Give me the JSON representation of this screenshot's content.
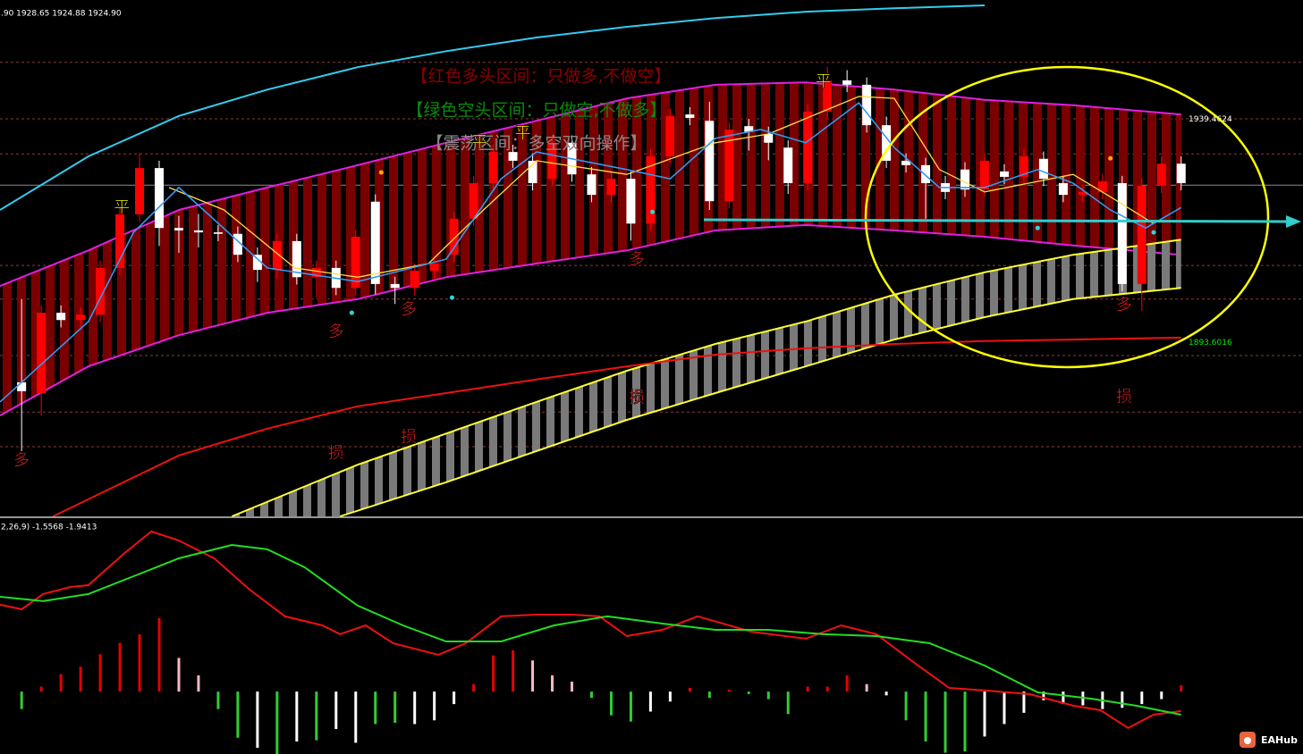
{
  "header": ".90 1928.65 1924.88 1924.90",
  "logo": "EAHub",
  "chart_data": [
    {
      "type": "candlestick",
      "xlim": [
        -1.1,
        65.2
      ],
      "ylim": [
        1857.9,
        1963.9
      ],
      "up_color": "#ff0000",
      "down_color": "#ffffff",
      "open": [
        1885.4,
        1883.2,
        1899.7,
        1898.2,
        1899.3,
        1908.9,
        1919.9,
        1929.4,
        1917.1,
        1916.6,
        1916.2,
        1915.9,
        1911.6,
        1908.5,
        1914.4,
        1907.0,
        1908.9,
        1904.8,
        1922.5,
        1905.6,
        1904.8,
        1908.3,
        1911.6,
        1919.0,
        1926.3,
        1932.7,
        1930.9,
        1927.2,
        1934.6,
        1928.1,
        1923.9,
        1927.2,
        1918.0,
        1931.8,
        1940.4,
        1939.1,
        1922.6,
        1938.0,
        1936.4,
        1933.6,
        1926.3,
        1941.0,
        1947.4,
        1946.5,
        1938.2,
        1930.9,
        1930.0,
        1926.3,
        1929.1,
        1925.0,
        1928.7,
        1927.6,
        1931.3,
        1926.3,
        1923.9,
        1924.5,
        1926.3,
        1905.6,
        1925.8,
        1930.3
      ],
      "high": [
        1902.5,
        1901.2,
        1901.2,
        1900.8,
        1910.4,
        1921.4,
        1932.4,
        1930.9,
        1919.6,
        1920.0,
        1917.7,
        1917.4,
        1913.1,
        1916.0,
        1915.9,
        1910.4,
        1910.4,
        1916.8,
        1924.0,
        1907.1,
        1909.8,
        1911.3,
        1920.5,
        1927.8,
        1934.2,
        1934.2,
        1932.4,
        1936.1,
        1936.1,
        1929.6,
        1928.7,
        1928.7,
        1933.3,
        1941.6,
        1941.9,
        1943.0,
        1938.8,
        1939.5,
        1937.9,
        1935.1,
        1942.5,
        1950.2,
        1949.5,
        1948.0,
        1940.0,
        1932.4,
        1931.5,
        1927.8,
        1930.6,
        1932.4,
        1930.2,
        1933.3,
        1932.8,
        1927.8,
        1926.0,
        1928.2,
        1927.8,
        1927.3,
        1931.8,
        1931.8
      ],
      "low": [
        1871.3,
        1878.6,
        1896.7,
        1896.7,
        1897.8,
        1907.4,
        1918.4,
        1913.4,
        1912.0,
        1913.1,
        1914.4,
        1910.1,
        1906.0,
        1906.6,
        1905.5,
        1902.8,
        1903.3,
        1903.3,
        1903.5,
        1901.5,
        1903.3,
        1906.8,
        1910.1,
        1917.5,
        1924.8,
        1929.4,
        1924.8,
        1925.7,
        1926.6,
        1922.4,
        1922.4,
        1914.5,
        1916.5,
        1930.3,
        1938.2,
        1920.8,
        1921.1,
        1933.0,
        1931.0,
        1924.1,
        1924.8,
        1939.5,
        1945.0,
        1936.7,
        1929.4,
        1928.5,
        1919.0,
        1923.0,
        1923.5,
        1923.5,
        1926.1,
        1926.1,
        1925.7,
        1922.4,
        1922.4,
        1923.0,
        1904.1,
        1900.0,
        1924.3,
        1924.8
      ],
      "close": [
        1883.6,
        1899.7,
        1898.2,
        1899.3,
        1908.9,
        1919.9,
        1929.4,
        1917.1,
        1916.6,
        1916.2,
        1915.9,
        1911.6,
        1908.5,
        1914.4,
        1907.0,
        1908.9,
        1904.8,
        1915.3,
        1905.6,
        1904.8,
        1908.3,
        1909.8,
        1919.0,
        1926.3,
        1932.7,
        1930.9,
        1926.3,
        1934.6,
        1928.1,
        1923.9,
        1927.2,
        1918.0,
        1931.8,
        1940.1,
        1939.7,
        1922.6,
        1937.3,
        1936.8,
        1934.6,
        1926.3,
        1941.0,
        1947.4,
        1946.5,
        1938.2,
        1930.9,
        1930.0,
        1926.3,
        1924.5,
        1925.0,
        1930.9,
        1927.6,
        1931.8,
        1927.2,
        1923.9,
        1924.5,
        1926.7,
        1905.6,
        1925.8,
        1930.3,
        1926.3
      ],
      "levels": [
        1951.1,
        1939.5,
        1932.3,
        1909.4,
        1902.5,
        1890.9,
        1879.3,
        1872.2
      ],
      "level_color": "#8f3a30",
      "last_price": 1925.9,
      "last_price_color": "#8a8a9a",
      "bands": [
        {
          "line_color": "#e020e0",
          "fill": "stripe-red",
          "upper": {
            "x": [
              -1.1,
              3.4,
              8.0,
              12.5,
              17.1,
              21.6,
              26.2,
              30.8,
              35.3,
              39.9,
              44.4,
              49.0,
              53.5,
              59.0
            ],
            "values": [
              1905.2,
              1912.5,
              1920.8,
              1925.4,
              1930.0,
              1934.6,
              1939.1,
              1943.7,
              1946.5,
              1947.0,
              1945.5,
              1943.4,
              1942.3,
              1940.4
            ]
          },
          "lower": {
            "x": [
              -1.1,
              3.4,
              8.0,
              12.5,
              17.1,
              21.6,
              26.2,
              30.8,
              35.3,
              39.9,
              44.4,
              49.0,
              53.5,
              59.0
            ],
            "values": [
              1878.6,
              1888.7,
              1895.1,
              1899.7,
              1902.5,
              1907.0,
              1909.8,
              1912.5,
              1916.6,
              1917.7,
              1916.6,
              1915.3,
              1913.5,
              1911.6
            ]
          }
        },
        {
          "line_color": "#ffff33",
          "fill": "stripe-gray",
          "upper": {
            "x": [
              10.7,
              17.1,
              21.6,
              26.2,
              30.8,
              35.3,
              39.9,
              44.4,
              49.0,
              53.5,
              59.0
            ],
            "values": [
              1857.9,
              1868.5,
              1874.9,
              1881.4,
              1887.8,
              1893.3,
              1897.9,
              1903.4,
              1908.0,
              1911.6,
              1914.7
            ]
          },
          "lower": {
            "x": [
              16.2,
              21.6,
              26.2,
              30.8,
              35.3,
              39.9,
              44.4,
              49.0,
              53.5,
              59.0
            ],
            "values": [
              1857.9,
              1864.9,
              1871.3,
              1877.7,
              1883.2,
              1888.7,
              1894.2,
              1898.8,
              1902.5,
              1904.8
            ]
          }
        }
      ],
      "lines": [
        {
          "color": "#33ccee",
          "width": 2,
          "x": [
            -1.1,
            3.4,
            8.0,
            12.5,
            17.1,
            21.6,
            26.2,
            30.8,
            35.3,
            39.9,
            44.4,
            49.0
          ],
          "values": [
            1920.8,
            1931.8,
            1940.1,
            1945.5,
            1950.1,
            1953.4,
            1956.2,
            1958.4,
            1960.2,
            1961.5,
            1962.2,
            1962.8
          ]
        },
        {
          "color": "#ee1111",
          "width": 2,
          "x": [
            1.6,
            8.0,
            12.5,
            17.1,
            21.6,
            26.2,
            30.8,
            35.3,
            39.9,
            44.4,
            49.0,
            53.5,
            59.0
          ],
          "values": [
            1857.9,
            1870.4,
            1875.9,
            1880.5,
            1883.2,
            1886.0,
            1888.7,
            1891.1,
            1892.4,
            1893.3,
            1893.9,
            1894.2,
            1894.6
          ]
        },
        {
          "color": "#ffdd44",
          "width": 1.3,
          "x": [
            7.5,
            10.3,
            13.9,
            17.1,
            20.7,
            23.5,
            26.2,
            30.8,
            35.3,
            38.0,
            42.6,
            44.4,
            46.7,
            49.0,
            53.5,
            55.4,
            57.6
          ],
          "values": [
            1925.4,
            1920.8,
            1908.9,
            1907.0,
            1909.8,
            1920.8,
            1930.9,
            1928.1,
            1934.6,
            1936.4,
            1944.1,
            1943.7,
            1929.1,
            1924.5,
            1928.1,
            1923.5,
            1918.0
          ]
        },
        {
          "color": "#3399ee",
          "width": 1.6,
          "x": [
            -1.1,
            3.4,
            5.7,
            8.0,
            12.5,
            17.1,
            21.6,
            24.4,
            26.2,
            30.8,
            33.0,
            35.3,
            37.6,
            39.9,
            42.6,
            44.4,
            46.7,
            49.0,
            51.7,
            53.5,
            55.4,
            57.2,
            59.0
          ],
          "values": [
            1881.4,
            1897.9,
            1916.2,
            1925.4,
            1908.9,
            1906.1,
            1910.7,
            1927.2,
            1932.7,
            1929.1,
            1927.2,
            1935.5,
            1937.3,
            1934.6,
            1942.8,
            1933.6,
            1925.4,
            1925.4,
            1929.1,
            1926.3,
            1920.8,
            1917.1,
            1921.3
          ]
        }
      ],
      "markers": [
        {
          "color": "#ffaa00",
          "x": [
            18.3,
            55.4
          ],
          "values": [
            1928.5,
            1931.4
          ]
        },
        {
          "color": "#22dddd",
          "x": [
            16.8,
            21.9,
            32.1,
            51.7,
            57.6
          ],
          "values": [
            1899.7,
            1902.8,
            1920.4,
            1917.1,
            1916.2
          ]
        }
      ],
      "annotations": [
        {
          "text": "多",
          "color": "#ff2020",
          "x": 0,
          "y": 1869.3
        },
        {
          "text": "平",
          "color": "#ffff00",
          "x": 5.1,
          "y": 1921.2
        },
        {
          "text": "多",
          "color": "#ff2020",
          "x": 16.0,
          "y": 1895.7
        },
        {
          "text": "损",
          "color": "#ff2020",
          "x": 16.0,
          "y": 1870.7
        },
        {
          "text": "多",
          "color": "#ff2020",
          "x": 19.7,
          "y": 1900.3
        },
        {
          "text": "损",
          "color": "#ff2020",
          "x": 19.7,
          "y": 1874.0
        },
        {
          "text": "平",
          "color": "#ffff00",
          "x": 23.3,
          "y": 1934.6
        },
        {
          "text": "平",
          "color": "#ffff00",
          "x": 25.5,
          "y": 1936.4
        },
        {
          "text": "多",
          "color": "#ff2020",
          "x": 31.3,
          "y": 1910.5
        },
        {
          "text": "损",
          "color": "#ff2020",
          "x": 31.3,
          "y": 1882.1
        },
        {
          "text": "平",
          "color": "#ffff00",
          "x": 40.8,
          "y": 1947.0
        },
        {
          "text": "多",
          "color": "#ff2020",
          "x": 56.1,
          "y": 1901.2
        },
        {
          "text": "损",
          "color": "#ff2020",
          "x": 56.1,
          "y": 1882.3
        }
      ],
      "price_labels": [
        {
          "value": 1939.4624,
          "color": "#ffffff"
        },
        {
          "value": 1893.6016,
          "color": "#00ee00"
        }
      ],
      "notes": [
        {
          "text": "【红色多头区间：只做多,不做空】",
          "color": "#8b0000"
        },
        {
          "text": "【绿色空头区间：只做空,不做多】",
          "color": "#0a8a0a"
        },
        {
          "text": "【震荡区间：多空双向操作】",
          "color": "#8a8a8a"
        }
      ]
    },
    {
      "type": "macd",
      "title": "2,26,9) -1.5568 -1.9413",
      "xlim": [
        -1.1,
        65.2
      ],
      "ylim": [
        -5,
        13.9
      ],
      "histogram": {
        "values": [
          -1.4,
          0.4,
          1.4,
          2.0,
          3.0,
          3.9,
          4.6,
          5.9,
          2.7,
          1.3,
          -1.4,
          -3.7,
          -4.5,
          -5.0,
          -4.0,
          -3.9,
          -3.0,
          -4.1,
          -2.6,
          -2.5,
          -2.6,
          -2.3,
          -1.0,
          0.6,
          2.9,
          3.3,
          2.5,
          1.3,
          0.8,
          -0.5,
          -1.9,
          -2.4,
          -1.6,
          -0.8,
          0.3,
          -0.5,
          0.15,
          -0.2,
          -0.6,
          -1.8,
          0.4,
          0.4,
          1.3,
          0.6,
          -0.3,
          -2.3,
          -4.0,
          -4.9,
          -4.8,
          -3.6,
          -2.6,
          -1.7,
          -0.7,
          -1.0,
          -1.1,
          -1.4,
          -1.3,
          -1.0,
          -0.6,
          0.5
        ],
        "colors": [
          "#32cd32",
          "#e60000",
          "#e60000",
          "#e60000",
          "#e60000",
          "#e60000",
          "#e60000",
          "#e60000",
          "#ffb6c1",
          "#ffb6c1",
          "#32cd32",
          "#32cd32",
          "#ffffff",
          "#32cd32",
          "#ffffff",
          "#32cd32",
          "#ffffff",
          "#ffffff",
          "#32cd32",
          "#32cd32",
          "#ffffff",
          "#ffffff",
          "#ffffff",
          "#e60000",
          "#e60000",
          "#e60000",
          "#ffb6c1",
          "#ffb6c1",
          "#ffb6c1",
          "#32cd32",
          "#32cd32",
          "#32cd32",
          "#ffffff",
          "#ffffff",
          "#e60000",
          "#32cd32",
          "#e60000",
          "#32cd32",
          "#32cd32",
          "#32cd32",
          "#e60000",
          "#e60000",
          "#e60000",
          "#ffb6c1",
          "#ffffff",
          "#32cd32",
          "#32cd32",
          "#32cd32",
          "#32cd32",
          "#ffffff",
          "#ffffff",
          "#ffffff",
          "#ffffff",
          "#ffffff",
          "#ffffff",
          "#ffffff",
          "#ffffff",
          "#ffffff",
          "#ffffff",
          "#e60000"
        ]
      },
      "lines": [
        {
          "color": "#ee1111",
          "width": 2,
          "x": [
            -1.1,
            0,
            1.1,
            2.5,
            3.4,
            5.2,
            6.6,
            8.0,
            9.8,
            11.6,
            13.4,
            15.3,
            16.2,
            17.5,
            18.9,
            21.2,
            22.6,
            24.4,
            26.2,
            28.0,
            29.4,
            30.8,
            32.6,
            34.4,
            37.1,
            39.9,
            41.7,
            43.5,
            45.3,
            47.2,
            49.0,
            51.3,
            53.5,
            54.9,
            56.3,
            57.6,
            59.0
          ],
          "values": [
            6.96,
            6.6,
            7.82,
            8.39,
            8.53,
            11.04,
            12.83,
            12.11,
            10.68,
            8.17,
            6.03,
            5.31,
            4.6,
            5.31,
            3.88,
            2.95,
            3.88,
            6.03,
            6.17,
            6.17,
            6.03,
            4.45,
            4.95,
            6.03,
            4.81,
            4.24,
            5.31,
            4.6,
            2.45,
            0.3,
            0.09,
            -0.2,
            -1.13,
            -1.49,
            -2.92,
            -1.85,
            -1.56
          ]
        },
        {
          "color": "#22dd22",
          "width": 2,
          "x": [
            -1.1,
            1.1,
            3.4,
            5.7,
            8.0,
            10.7,
            12.5,
            14.4,
            17.1,
            19.4,
            21.6,
            24.4,
            27.1,
            29.8,
            32.6,
            35.3,
            38.0,
            40.8,
            43.5,
            46.2,
            49.0,
            51.7,
            54.4,
            56.7,
            59.0
          ],
          "values": [
            7.6,
            7.25,
            7.82,
            9.25,
            10.68,
            11.75,
            11.4,
            9.96,
            6.89,
            5.31,
            4.02,
            4.02,
            5.31,
            6.03,
            5.45,
            4.95,
            4.95,
            4.6,
            4.45,
            3.88,
            2.09,
            -0.06,
            -0.56,
            -1.13,
            -1.85
          ]
        }
      ]
    }
  ]
}
